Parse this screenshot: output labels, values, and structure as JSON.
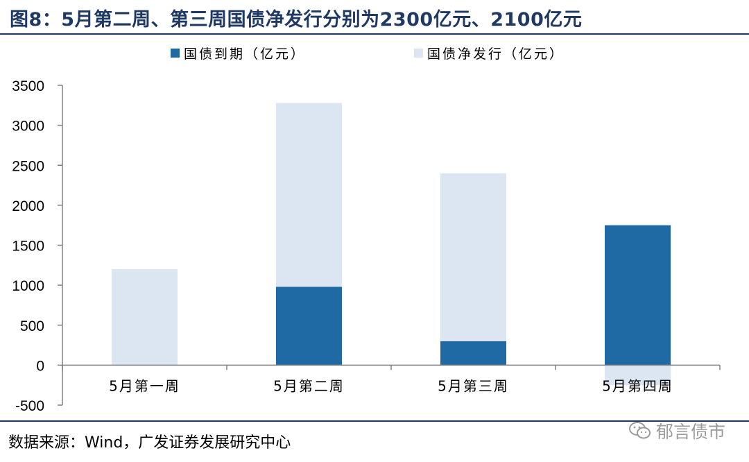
{
  "title": "图8：5月第二周、第三周国债净发行分别为2300亿元、2100亿元",
  "source": "数据来源：Wind，广发证券发展研究中心",
  "watermark": {
    "text": "郁言债市",
    "icon": "wechat-icon"
  },
  "colors": {
    "title": "#1f3864",
    "maturity": "#1f6aa5",
    "net_issuance": "#dce6f2",
    "axis": "#808080"
  },
  "chart_data": {
    "type": "bar",
    "stacked": true,
    "categories": [
      "5月第一周",
      "5月第二周",
      "5月第三周",
      "5月第四周"
    ],
    "series": [
      {
        "name": "国债到期（亿元）",
        "values": [
          0,
          980,
          300,
          1750
        ]
      },
      {
        "name": "国债净发行（亿元）",
        "values": [
          1200,
          2300,
          2100,
          -250
        ]
      }
    ],
    "yticks": [
      3500,
      3000,
      2500,
      2000,
      1500,
      1000,
      500,
      0,
      -500
    ],
    "ylim": [
      -500,
      3500
    ],
    "grid": false,
    "legend_position": "top"
  }
}
